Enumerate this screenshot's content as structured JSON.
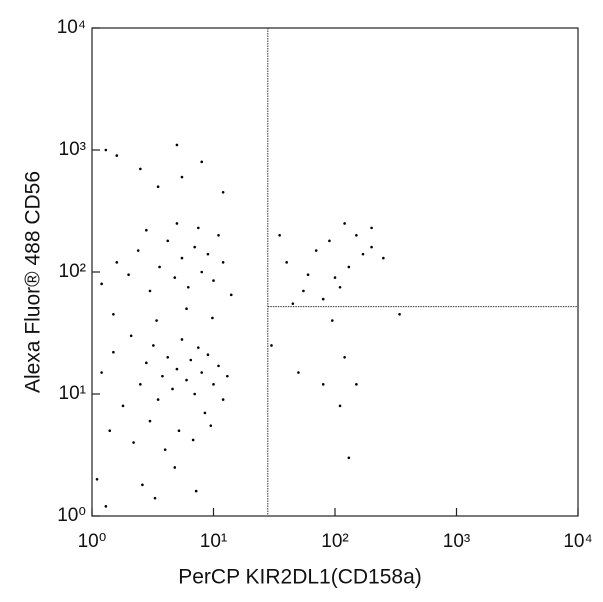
{
  "chart_data": {
    "type": "scatter",
    "x_label": "PerCP KIR2DL1(CD158a)",
    "y_label": "Alexa Fluor® 488 CD56",
    "x_scale": "log",
    "y_scale": "log",
    "xlim": [
      1,
      10000
    ],
    "ylim": [
      1,
      10000
    ],
    "xticks": [
      {
        "value": 1,
        "label": "10⁰"
      },
      {
        "value": 10,
        "label": "10¹"
      },
      {
        "value": 100,
        "label": "10²"
      },
      {
        "value": 1000,
        "label": "10³"
      },
      {
        "value": 10000,
        "label": "10⁴"
      }
    ],
    "yticks": [
      {
        "value": 1,
        "label": "10⁰"
      },
      {
        "value": 10,
        "label": "10¹"
      },
      {
        "value": 100,
        "label": "10²"
      },
      {
        "value": 1000,
        "label": "10³"
      },
      {
        "value": 10000,
        "label": "10⁴"
      }
    ],
    "color": "#000000",
    "quadrant_x": 28,
    "quadrant_y": 52,
    "x": [
      1.2,
      1.5,
      1.8,
      2.1,
      2.5,
      2.8,
      3.2,
      3.5,
      3.8,
      4.2,
      4.6,
      5.0,
      5.5,
      6.0,
      6.5,
      7.0,
      7.5,
      8.0,
      8.5,
      9.0,
      10,
      11,
      12,
      13,
      1.4,
      2.2,
      3.0,
      4.0,
      5.2,
      6.8,
      9.5,
      1.1,
      2.6,
      4.8,
      7.2,
      1.3,
      3.3,
      1.2,
      1.6,
      2.0,
      2.4,
      3.0,
      3.6,
      4.2,
      4.8,
      5.5,
      6.2,
      7.0,
      8.0,
      9.0,
      10,
      11,
      12,
      14,
      2.8,
      5.0,
      7.5,
      1.5,
      3.4,
      6.0,
      9.8,
      1.3,
      1.6,
      2.5,
      5.0,
      5.5,
      8.0,
      12,
      3.5,
      40,
      55,
      70,
      90,
      100,
      120,
      130,
      150,
      170,
      200,
      80,
      110,
      250,
      60,
      45,
      95,
      120,
      80,
      110,
      130,
      50,
      150,
      340,
      200,
      35,
      30
    ],
    "y": [
      15,
      22,
      8,
      30,
      12,
      18,
      25,
      9,
      14,
      20,
      11,
      16,
      28,
      13,
      19,
      10,
      24,
      15,
      7,
      21,
      12,
      17,
      9,
      14,
      5,
      4,
      6,
      3.5,
      5,
      4.2,
      5.5,
      2,
      1.8,
      2.5,
      1.6,
      1.2,
      1.4,
      80,
      120,
      95,
      150,
      70,
      110,
      180,
      90,
      130,
      75,
      160,
      100,
      140,
      85,
      200,
      120,
      65,
      220,
      250,
      230,
      45,
      40,
      50,
      42,
      1000,
      900,
      700,
      1100,
      600,
      800,
      450,
      500,
      120,
      70,
      150,
      180,
      90,
      250,
      110,
      200,
      140,
      160,
      60,
      75,
      130,
      95,
      55,
      40,
      20,
      12,
      8,
      3,
      15,
      12,
      45,
      230,
      200,
      25
    ]
  }
}
